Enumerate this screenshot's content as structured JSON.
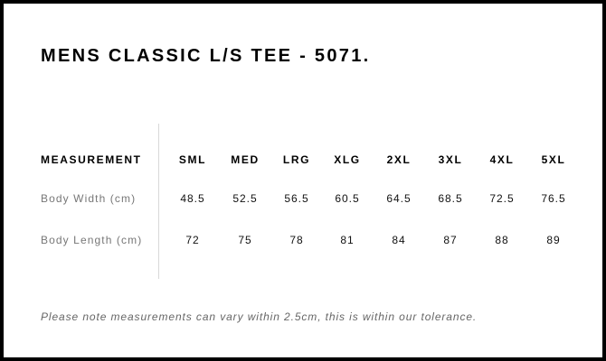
{
  "title": "MENS CLASSIC L/S TEE - 5071.",
  "table": {
    "header_label": "MEASUREMENT",
    "sizes": [
      "SML",
      "MED",
      "LRG",
      "XLG",
      "2XL",
      "3XL",
      "4XL",
      "5XL"
    ],
    "rows": [
      {
        "label": "Body Width (cm)",
        "values": [
          "48.5",
          "52.5",
          "56.5",
          "60.5",
          "64.5",
          "68.5",
          "72.5",
          "76.5"
        ]
      },
      {
        "label": "Body Length (cm)",
        "values": [
          "72",
          "75",
          "78",
          "81",
          "84",
          "87",
          "88",
          "89"
        ]
      }
    ]
  },
  "note": "Please note measurements can vary within 2.5cm, this is within our tolerance."
}
